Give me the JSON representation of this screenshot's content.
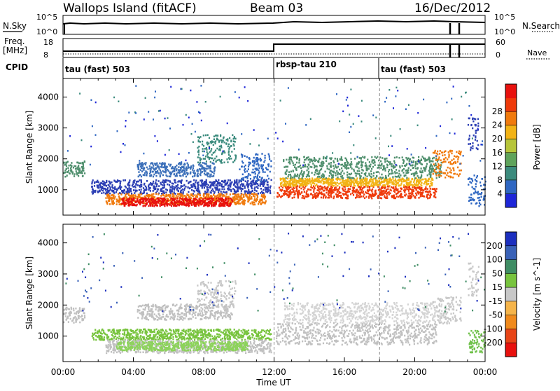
{
  "header": {
    "site": "Wallops Island (fitACF)",
    "beam": "Beam 03",
    "date": "16/Dec/2012"
  },
  "strips": {
    "nsky_label": "N.Sky",
    "nsky_top": "10^5",
    "nsky_bottom": "10^0",
    "nsearch_top": "10^5",
    "nsearch_bottom": "10^0",
    "nsearch_label": "N.Search",
    "freq_label": "Freq.",
    "freq_unit": "[MHz]",
    "freq_top": "18",
    "freq_bottom": "8",
    "nave_top": "60",
    "nave_bottom": "0",
    "nave_label": "Nave",
    "cpid_label": "CPID",
    "cpid_segments": [
      {
        "label": "tau (fast) 503",
        "start_hr": 0,
        "end_hr": 12
      },
      {
        "label": "rbsp-tau 210",
        "start_hr": 12,
        "end_hr": 18
      },
      {
        "label": "tau (fast) 503",
        "start_hr": 18,
        "end_hr": 24
      }
    ],
    "freq_change_hr": 12.0,
    "gap_hours": [
      21.8,
      22.6
    ]
  },
  "chart_data": [
    {
      "type": "heatmap",
      "name": "power",
      "ylabel": "Slant Range [km]",
      "ylim": [
        180,
        4600
      ],
      "yticks": [
        1000,
        2000,
        3000,
        4000
      ],
      "colorbar_label": "Power [dB]",
      "colorbar_ticks": [
        "4",
        "8",
        "12",
        "16",
        "20",
        "24",
        "28"
      ],
      "colorbar_colors": [
        "#1e26d8",
        "#2f67c2",
        "#3b8b7d",
        "#5fa35b",
        "#b7c53a",
        "#f2b316",
        "#f07a0d",
        "#ef3a0a",
        "#e8110e"
      ],
      "bands": [
        {
          "t0": 0.0,
          "t1": 1.2,
          "r0": 1450,
          "r1": 1950,
          "color": "#4f8f6d"
        },
        {
          "t0": 1.6,
          "t1": 11.8,
          "r0": 900,
          "r1": 1350,
          "color": "#2c3fb4"
        },
        {
          "t0": 2.4,
          "t1": 11.5,
          "r0": 550,
          "r1": 900,
          "color": "#f07a0d"
        },
        {
          "t0": 3.3,
          "t1": 9.6,
          "r0": 500,
          "r1": 760,
          "color": "#e8110e"
        },
        {
          "t0": 4.2,
          "t1": 8.6,
          "r0": 1450,
          "r1": 1900,
          "color": "#3b6fb9"
        },
        {
          "t0": 7.6,
          "t1": 9.8,
          "r0": 1900,
          "r1": 2800,
          "color": "#3b8b7d"
        },
        {
          "t0": 10.0,
          "t1": 11.8,
          "r0": 1300,
          "r1": 2200,
          "color": "#2f67c2"
        },
        {
          "t0": 12.1,
          "t1": 21.2,
          "r0": 750,
          "r1": 1150,
          "color": "#ef3a0a"
        },
        {
          "t0": 12.3,
          "t1": 21.0,
          "r0": 1150,
          "r1": 1400,
          "color": "#f2b316"
        },
        {
          "t0": 12.5,
          "t1": 21.5,
          "r0": 1400,
          "r1": 2100,
          "color": "#4f8f6d"
        },
        {
          "t0": 21.0,
          "t1": 22.6,
          "r0": 1400,
          "r1": 2300,
          "color": "#f07a0d"
        },
        {
          "t0": 23.0,
          "t1": 24.0,
          "r0": 500,
          "r1": 1500,
          "color": "#2f67c2"
        },
        {
          "t0": 23.0,
          "t1": 23.6,
          "r0": 2300,
          "r1": 3400,
          "color": "#2c3fb4"
        }
      ]
    },
    {
      "type": "heatmap",
      "name": "velocity",
      "ylabel": "Slant Range [km]",
      "xlabel": "Time UT",
      "xlim": [
        0,
        24
      ],
      "xticks": [
        "00:00",
        "04:00",
        "08:00",
        "12:00",
        "16:00",
        "20:00",
        "00:00"
      ],
      "ylim": [
        180,
        4600
      ],
      "yticks": [
        1000,
        2000,
        3000,
        4000
      ],
      "colorbar_label": "Velocity [m s^-1]",
      "colorbar_ticks": [
        "200",
        "100",
        "50",
        "15",
        "-15",
        "-50",
        "-100",
        "-200"
      ],
      "colorbar_colors": [
        "#1c2fbf",
        "#3a62b8",
        "#3f8d64",
        "#78c43e",
        "#c8c8c8",
        "#f5b44a",
        "#f08a1c",
        "#e84517",
        "#e8110e"
      ],
      "bands": [
        {
          "t0": 0.0,
          "t1": 1.2,
          "r0": 1450,
          "r1": 1950,
          "color": "#c0c0c0"
        },
        {
          "t0": 1.6,
          "t1": 11.8,
          "r0": 900,
          "r1": 1250,
          "color": "#78c43e"
        },
        {
          "t0": 2.4,
          "t1": 11.8,
          "r0": 480,
          "r1": 900,
          "color": "#c0c0c0"
        },
        {
          "t0": 3.0,
          "t1": 10.5,
          "r0": 560,
          "r1": 850,
          "color": "#8cd35a"
        },
        {
          "t0": 4.2,
          "t1": 9.6,
          "r0": 1550,
          "r1": 2050,
          "color": "#c0c0c0"
        },
        {
          "t0": 7.6,
          "t1": 9.8,
          "r0": 1900,
          "r1": 2800,
          "color": "#c8c8c8"
        },
        {
          "t0": 12.1,
          "t1": 21.2,
          "r0": 750,
          "r1": 1450,
          "color": "#c0c0c0"
        },
        {
          "t0": 12.5,
          "t1": 21.5,
          "r0": 1450,
          "r1": 2100,
          "color": "#d4d4d4"
        },
        {
          "t0": 21.0,
          "t1": 22.6,
          "r0": 1400,
          "r1": 2300,
          "color": "#c8c8c8"
        },
        {
          "t0": 23.0,
          "t1": 24.0,
          "r0": 500,
          "r1": 1200,
          "color": "#6fc14a"
        },
        {
          "t0": 23.0,
          "t1": 23.6,
          "r0": 2300,
          "r1": 3400,
          "color": "#c8c8c8"
        }
      ]
    }
  ]
}
